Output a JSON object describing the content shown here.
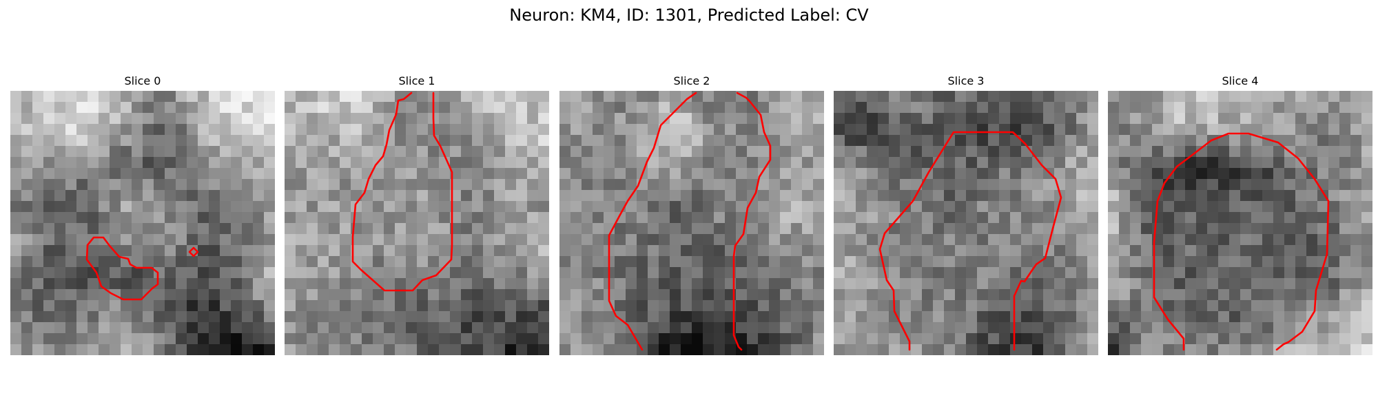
{
  "figure": {
    "title": "Neuron: KM4, ID: 1301, Predicted Label: CV"
  },
  "style": {
    "contour_color": "#ff0000",
    "background": "#ffffff",
    "colormap": "grayscale"
  },
  "panels": [
    {
      "title": "Slice 0"
    },
    {
      "title": "Slice 1"
    },
    {
      "title": "Slice 2"
    },
    {
      "title": "Slice 3"
    },
    {
      "title": "Slice 4"
    }
  ]
}
